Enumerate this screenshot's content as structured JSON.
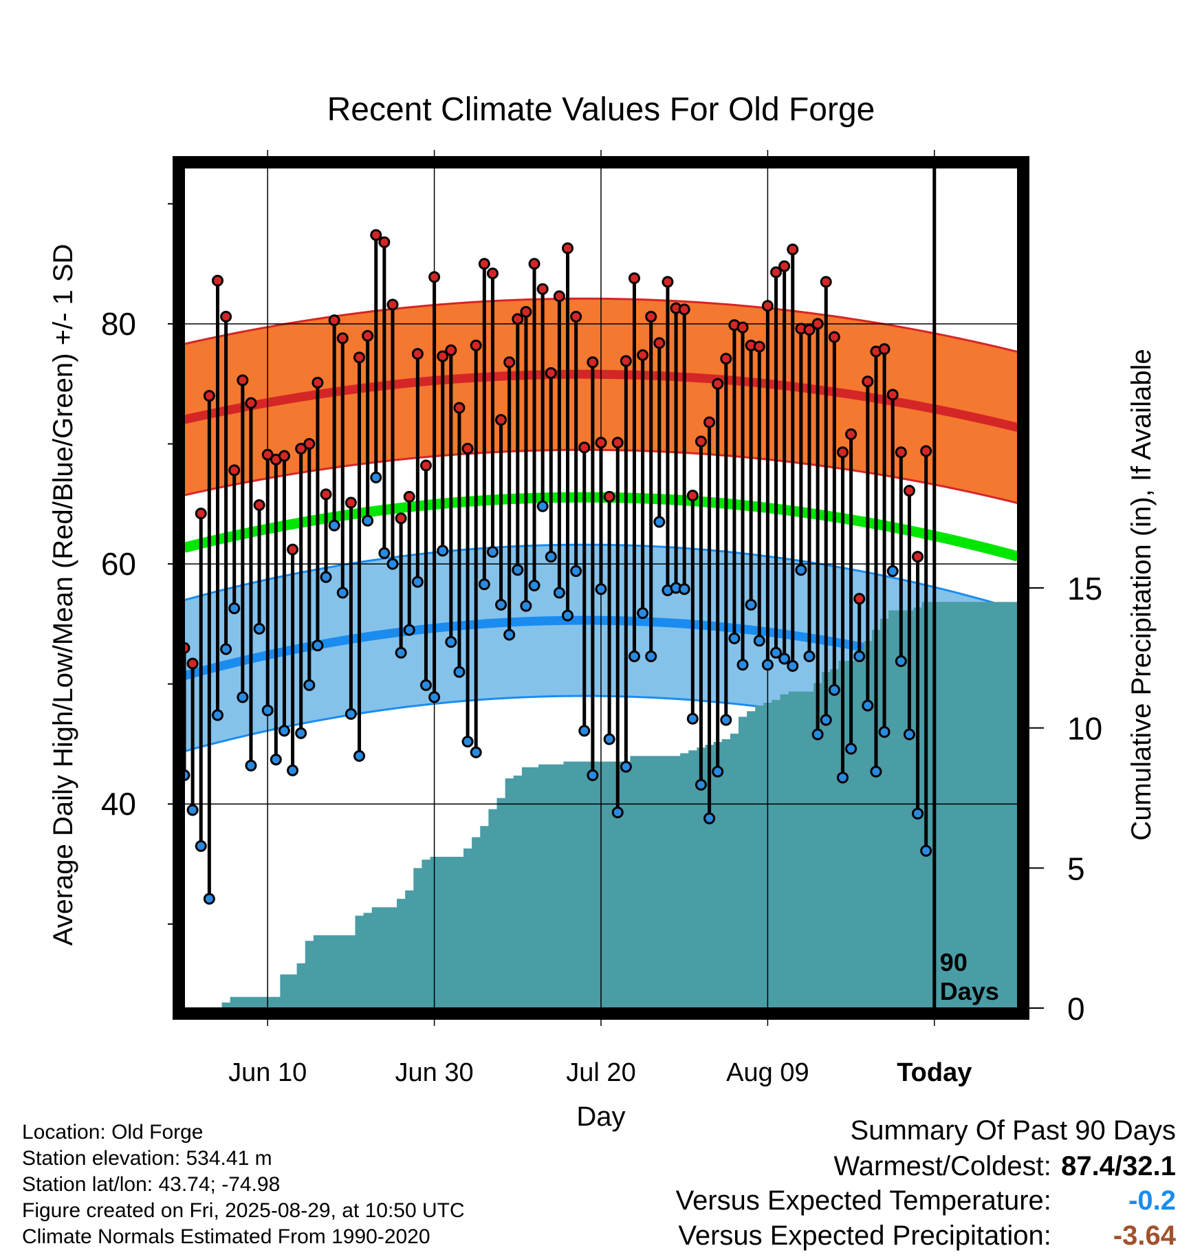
{
  "chart_data": {
    "type": "line",
    "title": "Recent Climate Values For Old Forge",
    "xlabel": "Day",
    "ylabel": "Average Daily High/Low/Mean (Red/Blue/Green) +/- 1 SD",
    "y2label": "Cumulative Precipitation (in), If Available",
    "x_tick_labels": [
      "Jun 10",
      "Jun 30",
      "Jul 20",
      "Aug 09",
      "Today"
    ],
    "y_tick_labels": [
      "40",
      "60",
      "80"
    ],
    "y2_tick_labels": [
      "0",
      "5",
      "10",
      "15"
    ],
    "ylim": [
      23,
      93
    ],
    "y2lim": [
      0,
      30
    ],
    "x_days_range": [
      -90,
      10
    ],
    "today_label_line1": "90",
    "today_label_line2": "Days",
    "grid": true,
    "colors": {
      "high_band": "#f47830",
      "high_mean": "#d42626",
      "low_band": "#85c2ea",
      "low_mean": "#1a8cf0",
      "mean": "#00e600",
      "precip": "#4a9ca5",
      "high_point": "#d42626",
      "low_point": "#2a8ae0"
    },
    "series": [
      {
        "name": "High",
        "values": [
          53,
          51.7,
          64.2,
          74,
          83.6,
          80.6,
          67.8,
          75.3,
          73.4,
          64.9,
          69.1,
          68.7,
          69,
          61.2,
          69.6,
          70,
          75.1,
          65.8,
          80.3,
          78.8,
          65.1,
          77.2,
          79,
          87.4,
          86.8,
          81.6,
          63.8,
          65.6,
          77.5,
          68.2,
          83.9,
          77.3,
          77.8,
          73,
          69.6,
          78.2,
          85,
          84.2,
          72,
          76.8,
          80.4,
          81,
          85,
          82.9,
          75.9,
          82.3,
          86.3,
          80.6,
          69.7,
          76.8,
          70.1,
          65.6,
          70.1,
          76.9,
          83.8,
          77.4,
          80.6,
          78.4,
          83.5,
          81.3,
          81.2,
          65.7,
          70.2,
          71.8,
          75,
          77.1,
          79.9,
          79.7,
          78.2,
          78.1,
          81.5,
          84.3,
          84.8,
          86.2,
          79.6,
          79.5,
          80,
          83.5,
          78.9,
          69.3,
          70.8,
          57.1,
          75.2,
          77.7,
          77.9,
          74.1,
          69.3,
          66.1,
          60.6,
          69.4
        ]
      },
      {
        "name": "Low",
        "values": [
          42.4,
          39.5,
          36.5,
          32.1,
          47.4,
          52.9,
          56.3,
          48.9,
          43.2,
          54.6,
          47.8,
          43.7,
          46.1,
          42.8,
          45.9,
          49.9,
          53.2,
          58.9,
          63.2,
          57.6,
          47.5,
          44,
          63.6,
          67.2,
          60.9,
          60,
          52.6,
          54.5,
          58.5,
          49.9,
          48.9,
          61.1,
          53.5,
          51,
          45.2,
          44.3,
          58.3,
          61,
          56.6,
          54.1,
          59.5,
          56.5,
          58.2,
          64.8,
          60.6,
          57.6,
          55.7,
          59.4,
          46.1,
          42.4,
          57.9,
          45.4,
          39.3,
          43.1,
          52.3,
          55.9,
          52.3,
          63.5,
          57.8,
          58,
          57.9,
          47.1,
          41.6,
          38.8,
          42.7,
          47,
          53.8,
          51.6,
          56.6,
          53.6,
          51.6,
          52.6,
          52.1,
          51.5,
          59.5,
          52.3,
          45.8,
          47,
          49.5,
          42.2,
          44.6,
          52.3,
          48.2,
          42.7,
          46,
          59.4,
          51.9,
          45.8,
          39.2,
          36.1
        ]
      },
      {
        "name": "Cumulative Precipitation",
        "values": [
          0,
          0,
          0,
          0,
          0,
          0.2,
          0.4,
          0.4,
          0.4,
          0.4,
          0.4,
          0.4,
          1.2,
          1.2,
          1.6,
          2.4,
          2.6,
          2.6,
          2.6,
          2.6,
          2.6,
          3.3,
          3.4,
          3.6,
          3.6,
          3.6,
          3.9,
          4.2,
          5,
          5.3,
          5.4,
          5.4,
          5.4,
          5.4,
          5.7,
          6.1,
          6.5,
          7.1,
          7.5,
          8.2,
          8.3,
          8.6,
          8.6,
          8.7,
          8.7,
          8.7,
          8.8,
          8.8,
          8.8,
          8.8,
          8.8,
          8.8,
          8.8,
          8.8,
          9.0,
          9.0,
          9.0,
          9.0,
          9.0,
          9.0,
          9.1,
          9.2,
          9.3,
          9.4,
          9.5,
          9.6,
          9.8,
          10.4,
          10.6,
          10.8,
          10.9,
          11.0,
          11.2,
          11.3,
          11.3,
          11.3,
          11.6,
          12.0,
          12.1,
          12.4,
          12.4,
          12.8,
          13.1,
          13.5,
          13.9,
          14.2,
          14.2,
          14.2,
          14.3,
          14.5
        ]
      }
    ]
  },
  "info": {
    "location": "Location: Old Forge",
    "elevation": "Station elevation: 534.41 m",
    "latlon": "Station lat/lon: 43.74; -74.98",
    "created": "Figure created on Fri, 2025-08-29, at 10:50 UTC",
    "normals": "Climate Normals Estimated From 1990-2020"
  },
  "summary": {
    "heading": "Summary Of Past 90 Days",
    "warm_cold_label": "Warmest/Coldest:",
    "warm_cold_value": "87.4/32.1",
    "temp_label": "Versus Expected Temperature:",
    "temp_value": "-0.2",
    "temp_color": "#1a8cf0",
    "precip_label": "Versus Expected Precipitation:",
    "precip_value": "-3.64",
    "precip_color": "#a0522d"
  }
}
